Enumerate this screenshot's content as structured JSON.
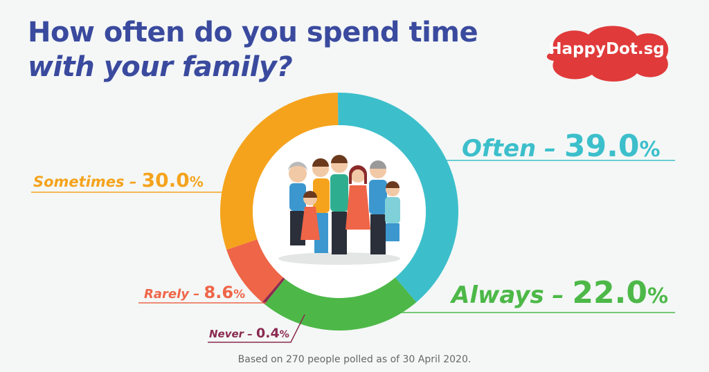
{
  "title": {
    "line1": "How often do you spend time",
    "line2": "with your family?"
  },
  "logo": {
    "text": "HappyDot.sg",
    "color": "#e03a3a"
  },
  "footnote": "Based on 270 people polled as of 30 April 2020.",
  "colors": {
    "title": "#3a4a9e",
    "often": "#3cbfcb",
    "always": "#4db848",
    "never": "#8b2a4f",
    "rarely": "#ef6548",
    "sometimes": "#f5a31d"
  },
  "chart_data": {
    "type": "pie",
    "donut": true,
    "start": "top, clockwise",
    "slices": [
      {
        "label": "Often",
        "value": 39.0,
        "display": "39.0",
        "color": "#3cbfcb"
      },
      {
        "label": "Always",
        "value": 22.0,
        "display": "22.0",
        "color": "#4db848"
      },
      {
        "label": "Never",
        "value": 0.4,
        "display": "0.4",
        "color": "#8b2a4f"
      },
      {
        "label": "Rarely",
        "value": 8.6,
        "display": "8.6",
        "color": "#ef6548"
      },
      {
        "label": "Sometimes",
        "value": 30.0,
        "display": "30.0",
        "color": "#f5a31d"
      }
    ],
    "separator": " – ",
    "unit": "%",
    "center_image": "family-illustration"
  }
}
